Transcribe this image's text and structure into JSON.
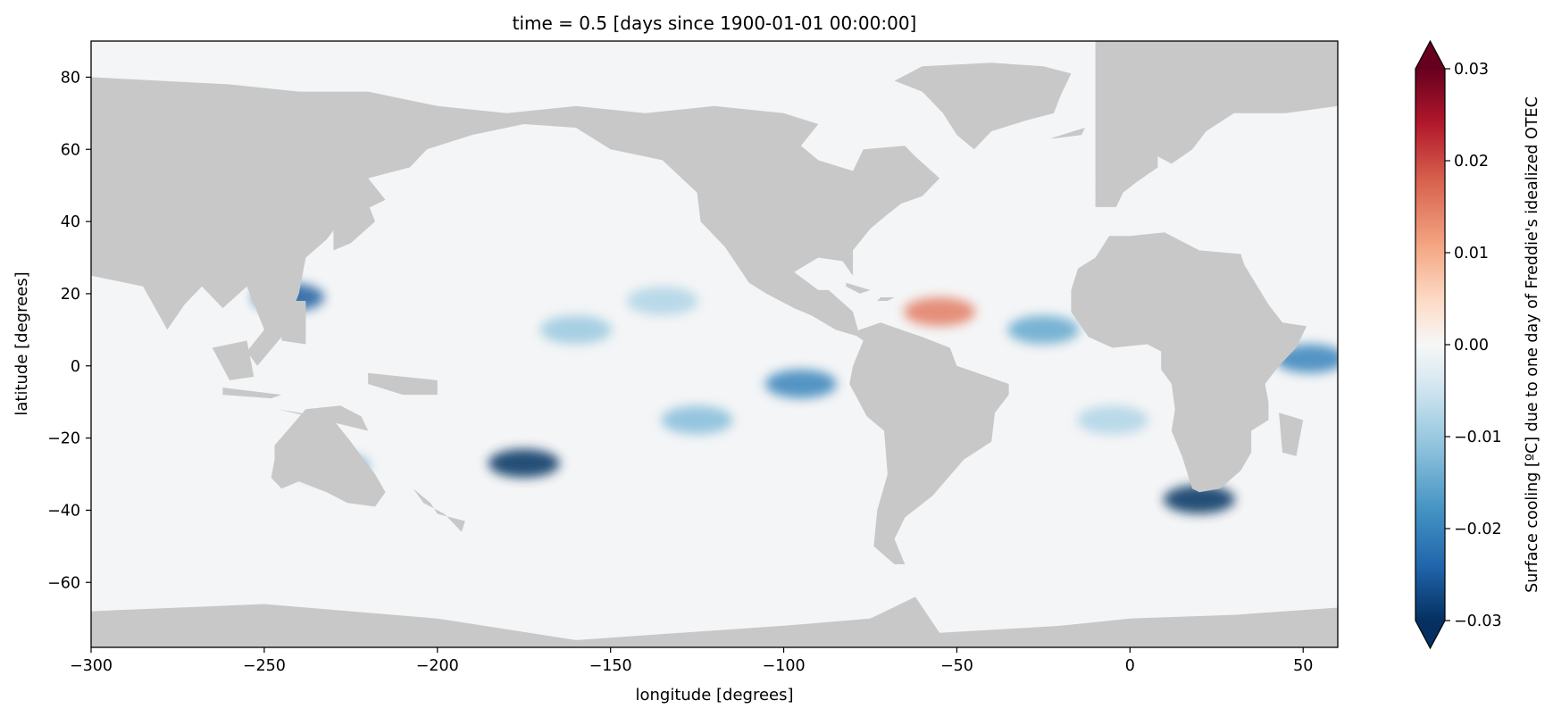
{
  "chart_data": {
    "type": "heatmap",
    "title": "time = 0.5 [days since 1900-01-01 00:00:00]",
    "xlabel": "longitude [degrees]",
    "ylabel": "latitude [degrees]",
    "xlim": [
      -300,
      60
    ],
    "ylim": [
      -78,
      90
    ],
    "xticks": [
      -300,
      -250,
      -200,
      -150,
      -100,
      -50,
      0,
      50
    ],
    "xtick_labels": [
      "−300",
      "−250",
      "−200",
      "−150",
      "−100",
      "−50",
      "0",
      "50"
    ],
    "yticks": [
      -60,
      -40,
      -20,
      0,
      20,
      40,
      60,
      80
    ],
    "ytick_labels": [
      "−60",
      "−40",
      "−20",
      "0",
      "20",
      "40",
      "60",
      "80"
    ],
    "colorbar": {
      "label": "Surface cooling [ºC] due to one day of Freddie's idealized OTEC",
      "range": [
        -0.03,
        0.03
      ],
      "extend": "both",
      "cmap": "RdBu_r",
      "ticks": [
        -0.03,
        -0.02,
        -0.01,
        0.0,
        0.01,
        0.02,
        0.03
      ],
      "tick_labels": [
        "−0.03",
        "−0.02",
        "−0.01",
        "0.00",
        "0.01",
        "0.02",
        "0.03"
      ]
    },
    "land_color": "#c8c8c8",
    "ocean_background_color": "#f4f5f6",
    "field_samples": [
      {
        "lon": -175,
        "lat": -27,
        "value": -0.03
      },
      {
        "lon": -230,
        "lat": -28,
        "value": -0.015
      },
      {
        "lon": -95,
        "lat": -5,
        "value": -0.02
      },
      {
        "lon": -160,
        "lat": 10,
        "value": -0.01
      },
      {
        "lon": -135,
        "lat": 18,
        "value": -0.008
      },
      {
        "lon": -125,
        "lat": -15,
        "value": -0.012
      },
      {
        "lon": -243,
        "lat": 19,
        "value": -0.025
      },
      {
        "lon": 20,
        "lat": -37,
        "value": -0.03
      },
      {
        "lon": -55,
        "lat": 15,
        "value": 0.015
      },
      {
        "lon": -5,
        "lat": -15,
        "value": -0.008
      },
      {
        "lon": 52,
        "lat": 2,
        "value": -0.02
      },
      {
        "lon": -25,
        "lat": 10,
        "value": -0.015
      }
    ]
  }
}
